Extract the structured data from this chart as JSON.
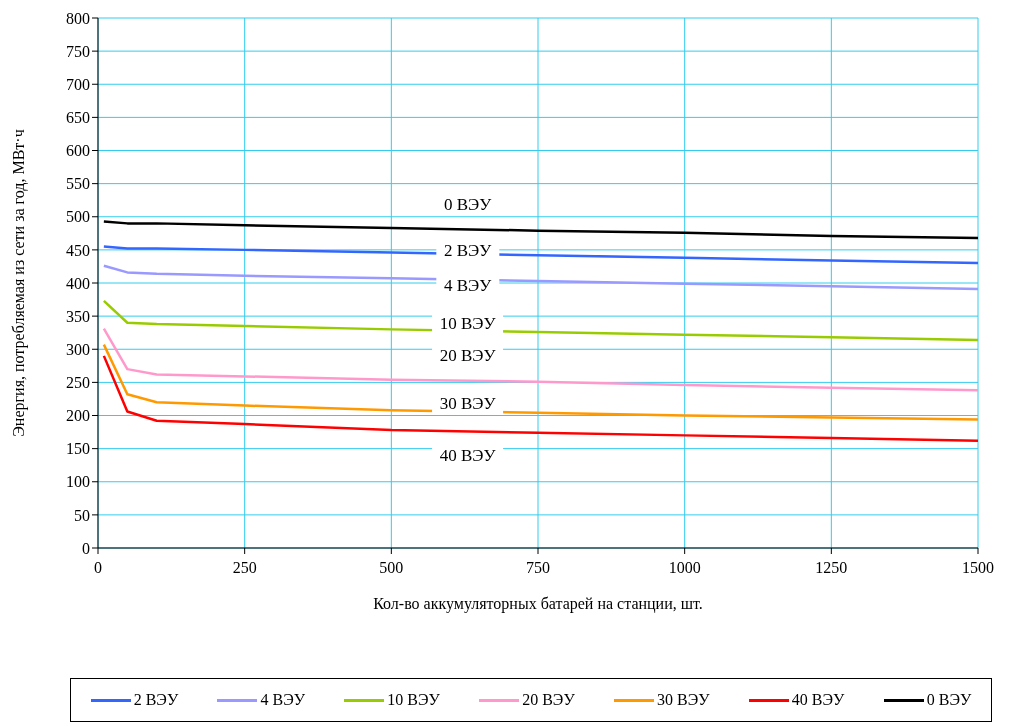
{
  "chart_data": {
    "type": "line",
    "xlabel": "Кол-во аккумуляторных батарей на станции, шт.",
    "ylabel": "Энергия, потребляемая из сети за год, МВт·ч",
    "x": [
      10,
      50,
      100,
      250,
      500,
      750,
      1000,
      1250,
      1500
    ],
    "series": [
      {
        "name": "2 ВЭУ",
        "color": "#3366ff",
        "values": [
          455,
          452,
          452,
          450,
          446,
          442,
          438,
          434,
          430
        ]
      },
      {
        "name": "4 ВЭУ",
        "color": "#9999ff",
        "values": [
          426,
          416,
          414,
          411,
          407,
          403,
          399,
          395,
          391
        ]
      },
      {
        "name": "10 ВЭУ",
        "color": "#99cc00",
        "values": [
          373,
          340,
          338,
          335,
          330,
          326,
          322,
          318,
          314
        ]
      },
      {
        "name": "20 ВЭУ",
        "color": "#ff99cc",
        "values": [
          331,
          270,
          262,
          259,
          254,
          251,
          246,
          242,
          238
        ]
      },
      {
        "name": "30 ВЭУ",
        "color": "#ff9900",
        "values": [
          307,
          232,
          220,
          215,
          208,
          204,
          200,
          197,
          194
        ]
      },
      {
        "name": "40 ВЭУ",
        "color": "#ff0000",
        "values": [
          290,
          206,
          192,
          187,
          178,
          174,
          170,
          166,
          162
        ]
      },
      {
        "name": "0 ВЭУ",
        "color": "#000000",
        "values": [
          493,
          490,
          490,
          487,
          483,
          479,
          476,
          471,
          468
        ]
      }
    ],
    "annotations": [
      "0 ВЭУ",
      "2 ВЭУ",
      "4 ВЭУ",
      "10 ВЭУ",
      "20 ВЭУ",
      "30 ВЭУ",
      "40 ВЭУ"
    ],
    "xlim": [
      0,
      1500
    ],
    "xticks": [
      0,
      250,
      500,
      750,
      1000,
      1250,
      1500
    ],
    "ylim": [
      0,
      800
    ],
    "yticks": [
      0,
      50,
      100,
      150,
      200,
      250,
      300,
      350,
      400,
      450,
      500,
      550,
      600,
      650,
      700,
      750,
      800
    ],
    "grid": true,
    "legend": "bottom",
    "marker": "none",
    "line_style": "solid"
  }
}
